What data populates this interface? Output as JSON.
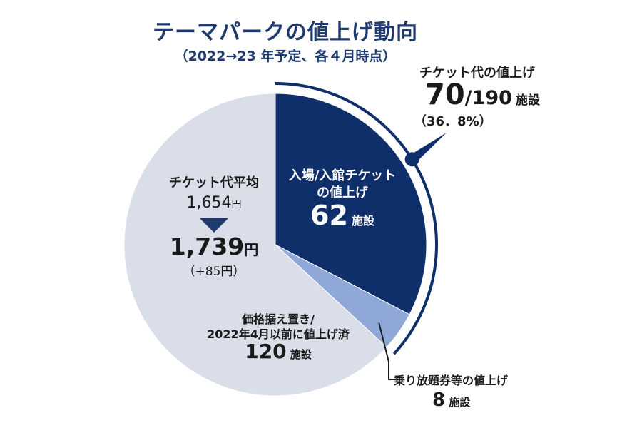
{
  "title": "テーマパークの値上げ動向",
  "subtitle": "（2022→23 年予定、各４月時点）",
  "callout": {
    "label": "チケット代の値上げ",
    "count": "70",
    "total": "/190",
    "unit": "施設",
    "percent": "（36．8%）"
  },
  "average": {
    "label": "チケット代平均",
    "before": "1,654",
    "after": "1,739",
    "yen": "円",
    "diff": "（+85円）"
  },
  "slice_labels": {
    "entry_line1": "入場/入館チケット",
    "entry_line2": "の値上げ",
    "entry_count": "62",
    "entry_unit": "施設",
    "freeze_line1": "価格据え置き/",
    "freeze_line2": "2022年4月以前に値上げ済",
    "freeze_count": "120",
    "freeze_unit": "施設",
    "pass_label": "乗り放題券等の値上げ",
    "pass_count": "8",
    "pass_unit": "施設"
  },
  "colors": {
    "entry": "#0f2f6b",
    "pass": "#8fa8d8",
    "freeze": "#d9dee8",
    "arc": "#0f2f6b"
  },
  "chart_data": {
    "type": "pie",
    "title": "テーマパークの値上げ動向",
    "subtitle": "（2022→23 年予定、各４月時点）",
    "unit": "施設",
    "total": 190,
    "slices": [
      {
        "label": "入場/入館チケットの値上げ",
        "value": 62
      },
      {
        "label": "乗り放題券等の値上げ",
        "value": 8
      },
      {
        "label": "価格据え置き/2022年4月以前に値上げ済",
        "value": 120
      }
    ]
  }
}
